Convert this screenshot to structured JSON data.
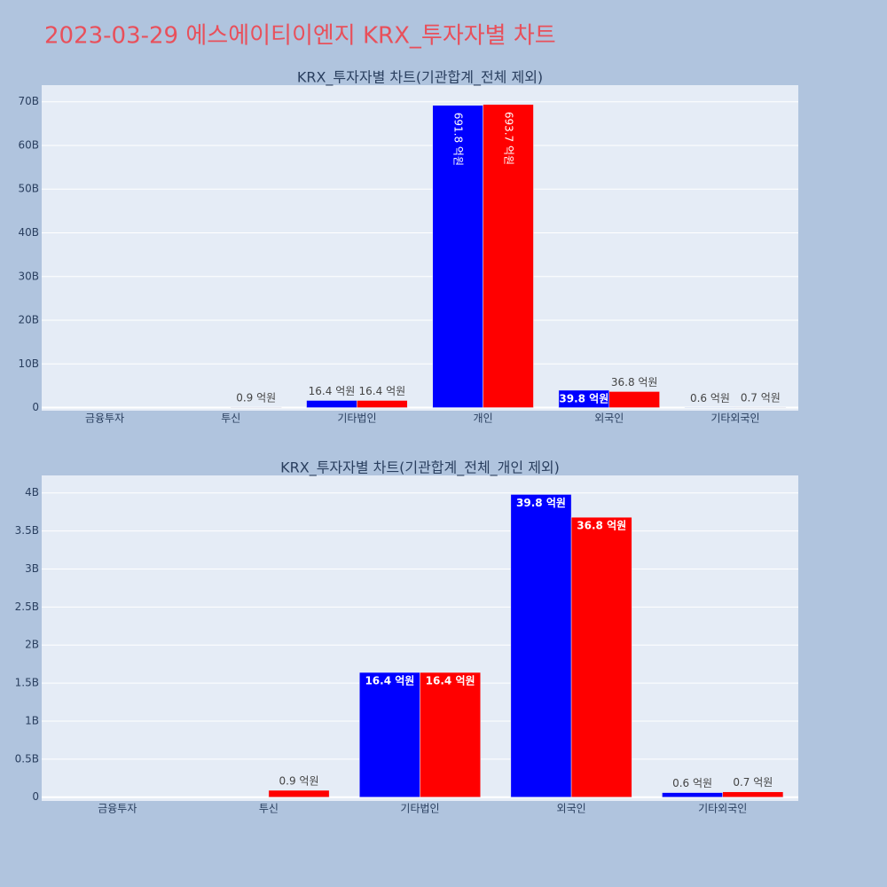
{
  "title": "2023-03-29 에스에이티이엔지 KRX_투자자별 차트",
  "chart_data": [
    {
      "type": "bar",
      "title": "KRX_투자자별 차트(기관합계_전체 제외)",
      "categories": [
        "금융투자",
        "투신",
        "기타법인",
        "개인",
        "외국인",
        "기타외국인"
      ],
      "series": [
        {
          "color": "#0000ff",
          "values": [
            0,
            0,
            1.64,
            69.18,
            3.98,
            0.06
          ],
          "value_labels": [
            null,
            null,
            "16.4 억원",
            "691.8 억원",
            "39.8 억원",
            "0.6 억원"
          ]
        },
        {
          "color": "#ff0000",
          "values": [
            0,
            0.09,
            1.64,
            69.37,
            3.68,
            0.07
          ],
          "value_labels": [
            null,
            "0.9 억원",
            "16.4 억원",
            "693.7 억원",
            "36.8 억원",
            "0.7 억원"
          ]
        }
      ],
      "ylim": [
        -0.7,
        73.8
      ],
      "yticks": [
        0,
        {
          "value": 10,
          "label": "10B"
        },
        {
          "value": 20,
          "label": "20B"
        },
        {
          "value": 30,
          "label": "30B"
        },
        {
          "value": 40,
          "label": "40B"
        },
        {
          "value": 50,
          "label": "50B"
        },
        {
          "value": 60,
          "label": "60B"
        },
        {
          "value": 70,
          "label": "70B"
        }
      ],
      "grid": true
    },
    {
      "type": "bar",
      "title": "KRX_투자자별 차트(기관합계_전체_개인 제외)",
      "categories": [
        "금융투자",
        "투신",
        "기타법인",
        "외국인",
        "기타외국인"
      ],
      "series": [
        {
          "color": "#0000ff",
          "values": [
            0,
            0,
            1.64,
            3.98,
            0.06
          ],
          "value_labels": [
            null,
            null,
            "16.4 억원",
            "39.8 억원",
            "0.6 억원"
          ]
        },
        {
          "color": "#ff0000",
          "values": [
            0,
            0.09,
            1.64,
            3.68,
            0.07
          ],
          "value_labels": [
            null,
            "0.9 억원",
            "16.4 억원",
            "36.8 억원",
            "0.7 억원"
          ]
        }
      ],
      "ylim": [
        -0.05,
        4.23
      ],
      "yticks": [
        0,
        {
          "value": 0.5,
          "label": "0.5B"
        },
        {
          "value": 1,
          "label": "1B"
        },
        {
          "value": 1.5,
          "label": "1.5B"
        },
        {
          "value": 2,
          "label": "2B"
        },
        {
          "value": 2.5,
          "label": "2.5B"
        },
        {
          "value": 3,
          "label": "3B"
        },
        {
          "value": 3.5,
          "label": "3.5B"
        },
        {
          "value": 4,
          "label": "4B"
        }
      ],
      "grid": true
    }
  ]
}
